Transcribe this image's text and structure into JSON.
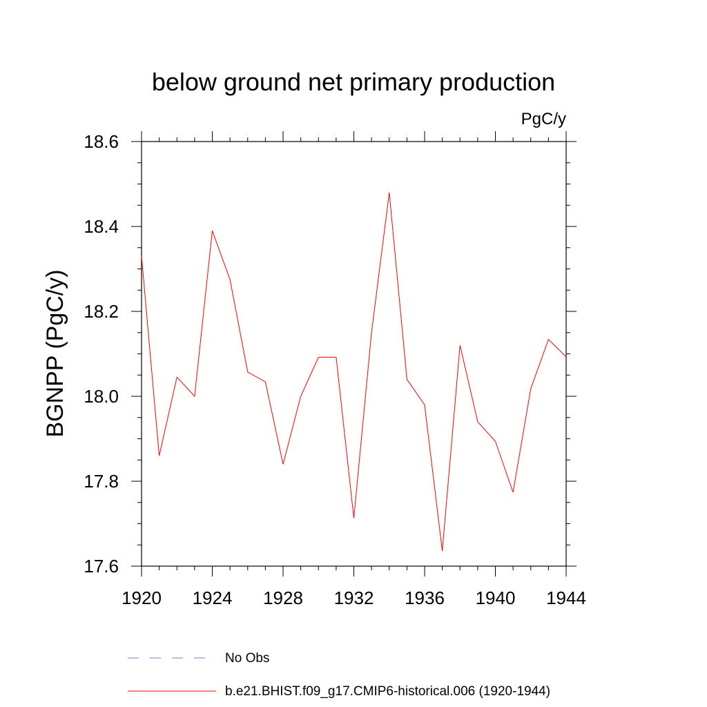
{
  "chart_data": {
    "type": "line",
    "title": "below ground net primary production",
    "units": "PgC/y",
    "ylabel": "BGNPP  (PgC/y)",
    "xlabel": "",
    "xlim": [
      1920,
      1944
    ],
    "ylim": [
      17.6,
      18.6
    ],
    "x_ticks": [
      1920,
      1924,
      1928,
      1932,
      1936,
      1940,
      1944
    ],
    "x_tick_labels": [
      "1920",
      "1924",
      "1928",
      "1932",
      "1936",
      "1940",
      "1944"
    ],
    "y_ticks": [
      17.6,
      17.8,
      18.0,
      18.2,
      18.4,
      18.6
    ],
    "y_tick_labels": [
      "17.6",
      "17.8",
      "18.0",
      "18.2",
      "18.4",
      "18.6"
    ],
    "grid": false,
    "legend_position": "bottom",
    "series": [
      {
        "name": "b.e21.BHIST.f09_g17.CMIP6-historical.006 (1920-1944)",
        "color": "#ff0000",
        "style": "solid",
        "x": [
          1920,
          1921,
          1922,
          1923,
          1924,
          1925,
          1926,
          1927,
          1928,
          1929,
          1930,
          1931,
          1932,
          1933,
          1934,
          1935,
          1936,
          1937,
          1938,
          1939,
          1940,
          1941,
          1942,
          1943,
          1944
        ],
        "values": [
          18.33,
          17.86,
          18.045,
          18.0,
          18.39,
          18.275,
          18.057,
          18.034,
          17.84,
          18.0,
          18.092,
          18.092,
          17.713,
          18.15,
          18.48,
          18.04,
          17.98,
          17.636,
          18.12,
          17.94,
          17.894,
          17.774,
          18.018,
          18.134,
          18.093
        ]
      }
    ],
    "legend": [
      {
        "label": "No Obs",
        "color": "#7b78c8",
        "style": "dashed"
      },
      {
        "label": "b.e21.BHIST.f09_g17.CMIP6-historical.006 (1920-1944)",
        "color": "#ff0000",
        "style": "solid"
      }
    ]
  }
}
